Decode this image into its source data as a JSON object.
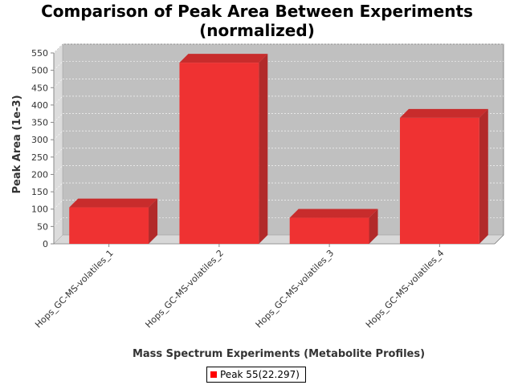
{
  "chart_data": {
    "type": "bar",
    "title": "Comparison of Peak Area Between Experiments\n(normalized)",
    "xlabel": "Mass Spectrum Experiments (Metabolite Profiles)",
    "ylabel": "Peak Area (1e-3)",
    "categories": [
      "Hops_GC-MS-volatiles_1",
      "Hops_GC-MS-volatiles_2",
      "Hops_GC-MS-volatiles_3",
      "Hops_GC-MS-volatiles_4"
    ],
    "series": [
      {
        "name": "Peak 55(22.297)",
        "values": [
          105,
          522,
          75,
          363
        ]
      }
    ],
    "ylim": [
      0,
      550
    ],
    "yticks": [
      "0",
      "50",
      "100",
      "150",
      "200",
      "250",
      "300",
      "350",
      "400",
      "450",
      "500",
      "550"
    ],
    "grid": true,
    "legend": "bottom",
    "colors": {
      "bar_front": "#ef3232",
      "bar_top": "#c82c2c",
      "bar_side": "#b22a2a",
      "plot_bg": "#c0c0c0",
      "wall": "#dcdcdc",
      "floor": "#d8d8d8"
    }
  }
}
